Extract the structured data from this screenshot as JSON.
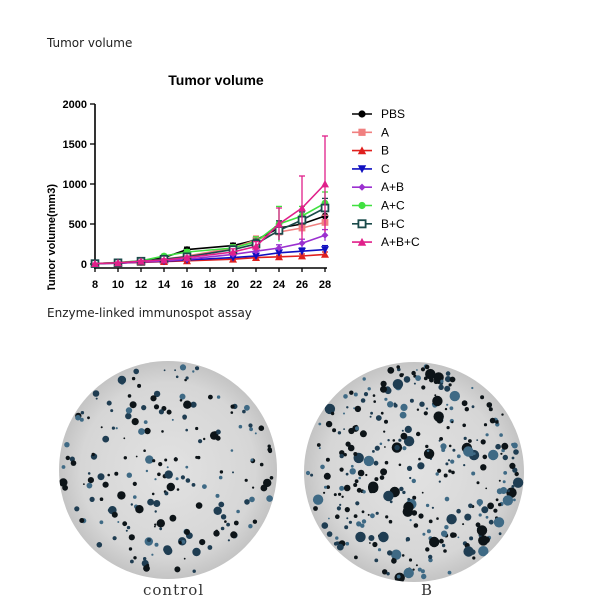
{
  "sections": {
    "tumor_label": "Tumor volume",
    "elispot_label": "Enzyme-linked immunospot assay"
  },
  "elispot": {
    "wells": [
      {
        "label": "control",
        "spot_density": "low"
      },
      {
        "label": "B",
        "spot_density": "high"
      }
    ]
  },
  "chart_data": {
    "type": "line",
    "title": "Tumor volume",
    "xlabel": "",
    "ylabel": "Tumor volume(mm3)",
    "x": [
      8,
      10,
      12,
      14,
      16,
      18,
      20,
      22,
      24,
      26,
      28
    ],
    "xticks": [
      "8",
      "10",
      "12",
      "14",
      "16",
      "18",
      "20",
      "22",
      "24",
      "26",
      "28"
    ],
    "yticks": [
      "0",
      "500",
      "1000",
      "1500",
      "2000"
    ],
    "xlim": [
      8,
      28
    ],
    "ylim": [
      0,
      2000
    ],
    "legend_position": "right",
    "series": [
      {
        "name": "PBS",
        "color": "#000000",
        "marker": "circle",
        "x": [
          8,
          10,
          12,
          14,
          16,
          20,
          22,
          24,
          26,
          28
        ],
        "values": [
          5,
          15,
          40,
          80,
          180,
          230,
          300,
          450,
          500,
          600
        ],
        "err": [
          5,
          10,
          15,
          20,
          30,
          30,
          40,
          60,
          80,
          100
        ]
      },
      {
        "name": "A",
        "color": "#f08080",
        "marker": "square",
        "x": [
          8,
          10,
          12,
          14,
          16,
          20,
          22,
          24,
          26,
          28
        ],
        "values": [
          5,
          15,
          30,
          60,
          100,
          200,
          300,
          400,
          450,
          520
        ],
        "err": [
          5,
          10,
          15,
          20,
          30,
          40,
          50,
          60,
          80,
          90
        ]
      },
      {
        "name": "B",
        "color": "#e0201e",
        "marker": "triangle-up",
        "x": [
          8,
          10,
          12,
          14,
          16,
          20,
          22,
          24,
          26,
          28
        ],
        "values": [
          5,
          10,
          20,
          30,
          40,
          60,
          80,
          90,
          100,
          120
        ],
        "err": [
          3,
          5,
          8,
          10,
          12,
          15,
          20,
          20,
          25,
          30
        ]
      },
      {
        "name": "C",
        "color": "#1010c0",
        "marker": "triangle-down",
        "x": [
          8,
          10,
          12,
          14,
          16,
          20,
          22,
          24,
          26,
          28
        ],
        "values": [
          5,
          10,
          25,
          35,
          50,
          80,
          100,
          140,
          160,
          180
        ],
        "err": [
          3,
          5,
          8,
          10,
          15,
          20,
          25,
          30,
          40,
          50
        ]
      },
      {
        "name": "A+B",
        "color": "#9b30d0",
        "marker": "diamond",
        "x": [
          8,
          10,
          12,
          14,
          16,
          20,
          22,
          24,
          26,
          28
        ],
        "values": [
          5,
          10,
          25,
          40,
          60,
          120,
          160,
          200,
          260,
          360
        ],
        "err": [
          3,
          5,
          8,
          10,
          15,
          25,
          30,
          40,
          50,
          70
        ]
      },
      {
        "name": "A+C",
        "color": "#40e040",
        "marker": "circle",
        "x": [
          8,
          10,
          12,
          14,
          16,
          20,
          22,
          24,
          26,
          28
        ],
        "values": [
          5,
          20,
          40,
          100,
          150,
          200,
          280,
          500,
          600,
          760
        ],
        "err": [
          5,
          10,
          15,
          20,
          30,
          40,
          60,
          220,
          120,
          140
        ]
      },
      {
        "name": "B+C",
        "color": "#1a4a4a",
        "marker": "square-open",
        "x": [
          8,
          10,
          12,
          14,
          16,
          20,
          22,
          24,
          26,
          28
        ],
        "values": [
          5,
          15,
          35,
          60,
          90,
          180,
          250,
          420,
          550,
          700
        ],
        "err": [
          5,
          10,
          12,
          20,
          25,
          40,
          60,
          120,
          100,
          120
        ]
      },
      {
        "name": "A+B+C",
        "color": "#e0208a",
        "marker": "triangle-up",
        "x": [
          8,
          10,
          12,
          14,
          16,
          20,
          22,
          24,
          26,
          28
        ],
        "values": [
          5,
          15,
          35,
          50,
          80,
          150,
          220,
          500,
          700,
          1000
        ],
        "err": [
          5,
          10,
          12,
          15,
          20,
          40,
          60,
          200,
          400,
          600
        ]
      }
    ]
  }
}
